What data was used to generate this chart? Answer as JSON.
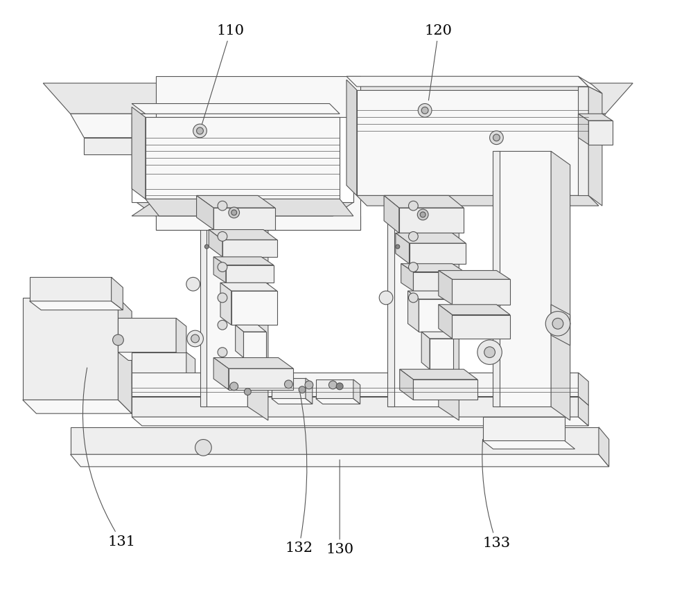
{
  "background_color": "#ffffff",
  "line_color": "#555555",
  "label_color": "#000000",
  "font_size": 15,
  "lw_main": 0.8,
  "lw_thin": 0.5,
  "fc_light": "#f8f8f8",
  "fc_mid": "#eeeeee",
  "fc_dark": "#e0e0e0",
  "fc_side": "#d8d8d8"
}
